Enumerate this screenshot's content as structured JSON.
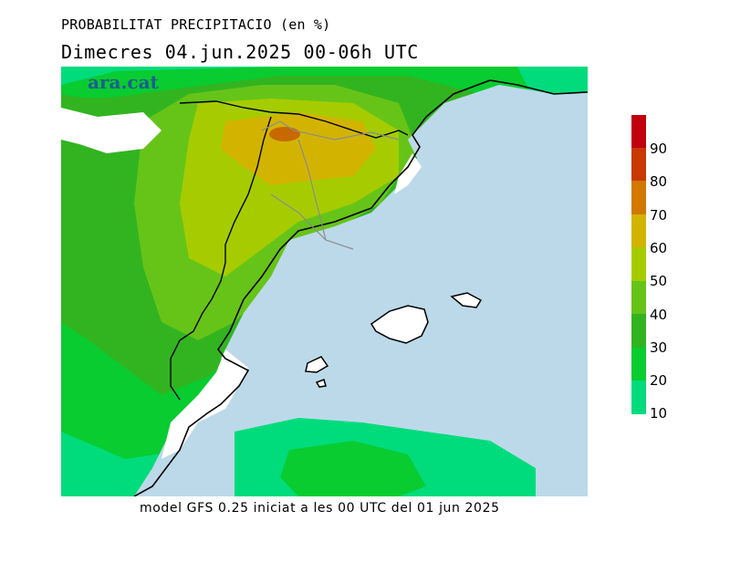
{
  "title": "PROBABILITAT PRECIPITACIO (en %)",
  "subtitle": "Dimecres  04.jun.2025 00-06h UTC",
  "logo_text": "ara.cat",
  "footer": "model GFS 0.25 iniciat a les 00 UTC del 01 jun 2025",
  "legend": {
    "labels": [
      "90",
      "80",
      "70",
      "60",
      "50",
      "40",
      "30",
      "20",
      "10"
    ],
    "colors": [
      "#c0000c",
      "#c83800",
      "#d27800",
      "#d2b400",
      "#a6cc00",
      "#66c418",
      "#32b420",
      "#08cc30",
      "#00dc7c"
    ]
  },
  "colors": {
    "sea": "#bcd9e9",
    "land_white": "#ffffff",
    "border": "#000000"
  }
}
